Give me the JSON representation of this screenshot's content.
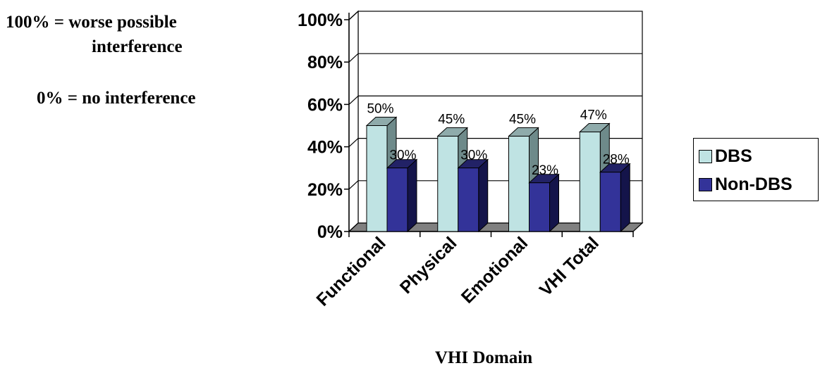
{
  "notes": {
    "worst": "100% = worse possible",
    "worst_cont": "interference",
    "none": "0% = no interference"
  },
  "chart_data": {
    "type": "bar",
    "categories": [
      "Functional",
      "Physical",
      "Emotional",
      "VHI Total"
    ],
    "series": [
      {
        "name": "DBS",
        "values": [
          50,
          45,
          45,
          47
        ],
        "labels": [
          "50%",
          "45%",
          "45%",
          "47%"
        ]
      },
      {
        "name": "Non-DBS",
        "values": [
          30,
          30,
          23,
          28
        ],
        "labels": [
          "30%",
          "30%",
          "23%",
          "28%"
        ]
      }
    ],
    "yticks": [
      "0%",
      "20%",
      "40%",
      "60%",
      "80%",
      "100%"
    ],
    "ylim": [
      0,
      100
    ],
    "xlabel": "VHI Domain",
    "ylabel": "",
    "grid": true,
    "legend": "right",
    "colors": {
      "dbs_front": "#bfe3e3",
      "dbs_side": "#6e8a8a",
      "dbs_top": "#8fabab",
      "nondbs_front": "#333399",
      "nondbs_side": "#14144a",
      "nondbs_top": "#222266",
      "floor": "#808080"
    }
  }
}
